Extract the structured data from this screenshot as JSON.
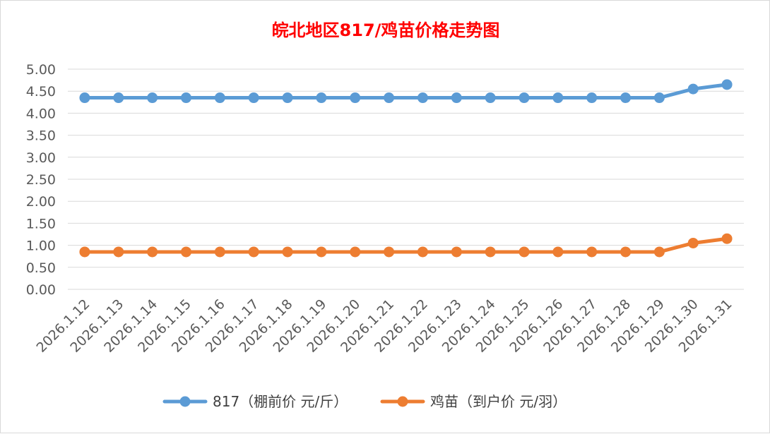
{
  "chart_data": {
    "type": "line",
    "title": "皖北地区817/鸡苗价格走势图",
    "categories": [
      "2026.1.12",
      "2026.1.13",
      "2026.1.14",
      "2026.1.15",
      "2026.1.16",
      "2026.1.17",
      "2026.1.18",
      "2026.1.19",
      "2026.1.20",
      "2026.1.21",
      "2026.1.22",
      "2026.1.23",
      "2026.1.24",
      "2026.1.25",
      "2026.1.26",
      "2026.1.27",
      "2026.1.28",
      "2026.1.29",
      "2026.1.30",
      "2026.1.31"
    ],
    "y_ticks": [
      "0.00",
      "0.50",
      "1.00",
      "1.50",
      "2.00",
      "2.50",
      "3.00",
      "3.50",
      "4.00",
      "4.50",
      "5.00"
    ],
    "ylim": [
      0,
      5
    ],
    "grid": true,
    "legend_position": "bottom",
    "series": [
      {
        "name": "817（棚前价 元/斤）",
        "color": "#5b9bd5",
        "values": [
          4.35,
          4.35,
          4.35,
          4.35,
          4.35,
          4.35,
          4.35,
          4.35,
          4.35,
          4.35,
          4.35,
          4.35,
          4.35,
          4.35,
          4.35,
          4.35,
          4.35,
          4.35,
          4.55,
          4.65
        ]
      },
      {
        "name": "鸡苗（到户价 元/羽）",
        "color": "#ed7d31",
        "values": [
          0.85,
          0.85,
          0.85,
          0.85,
          0.85,
          0.85,
          0.85,
          0.85,
          0.85,
          0.85,
          0.85,
          0.85,
          0.85,
          0.85,
          0.85,
          0.85,
          0.85,
          0.85,
          1.05,
          1.15
        ]
      }
    ]
  }
}
